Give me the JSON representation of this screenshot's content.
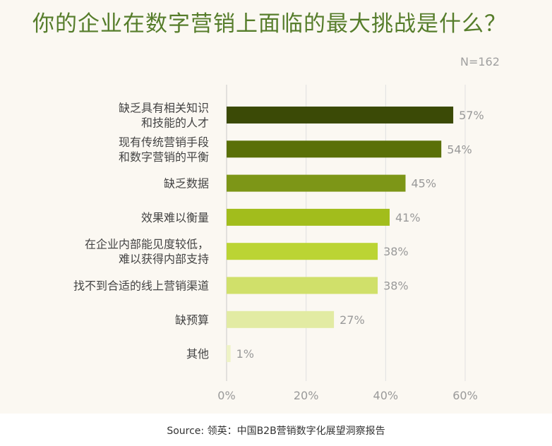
{
  "title": "你的企业在数字营销上面临的最大挑战是什么？",
  "sample_size": "N=162",
  "source": "Source: 领英：中国B2B营销数字化展望洞察报告",
  "chart_data": {
    "type": "bar",
    "orientation": "horizontal",
    "title": "你的企业在数字营销上面临的最大挑战是什么？",
    "categories": [
      [
        "缺乏具有相关知识",
        "和技能的人才"
      ],
      [
        "现有传统营销手段",
        "和数字营销的平衡"
      ],
      [
        "缺乏数据"
      ],
      [
        "效果难以衡量"
      ],
      [
        "在企业内部能见度较低，",
        "难以获得内部支持"
      ],
      [
        "找不到合适的线上营销渠道"
      ],
      [
        "缺预算"
      ],
      [
        "其他"
      ]
    ],
    "values": [
      57,
      54,
      45,
      41,
      38,
      38,
      27,
      1
    ],
    "value_labels": [
      "57%",
      "54%",
      "45%",
      "41%",
      "38%",
      "38%",
      "27%",
      "1%"
    ],
    "colors": [
      "#3b4a06",
      "#5a7008",
      "#7d9617",
      "#a2bd1c",
      "#bbd434",
      "#d0e06a",
      "#e2eba3",
      "#eef3c6"
    ],
    "xlim": [
      0,
      60
    ],
    "xticks": [
      0,
      20,
      40,
      60
    ],
    "xtick_labels": [
      "0%",
      "20%",
      "40%",
      "60%"
    ],
    "grid": true,
    "xlabel": "",
    "ylabel": ""
  }
}
